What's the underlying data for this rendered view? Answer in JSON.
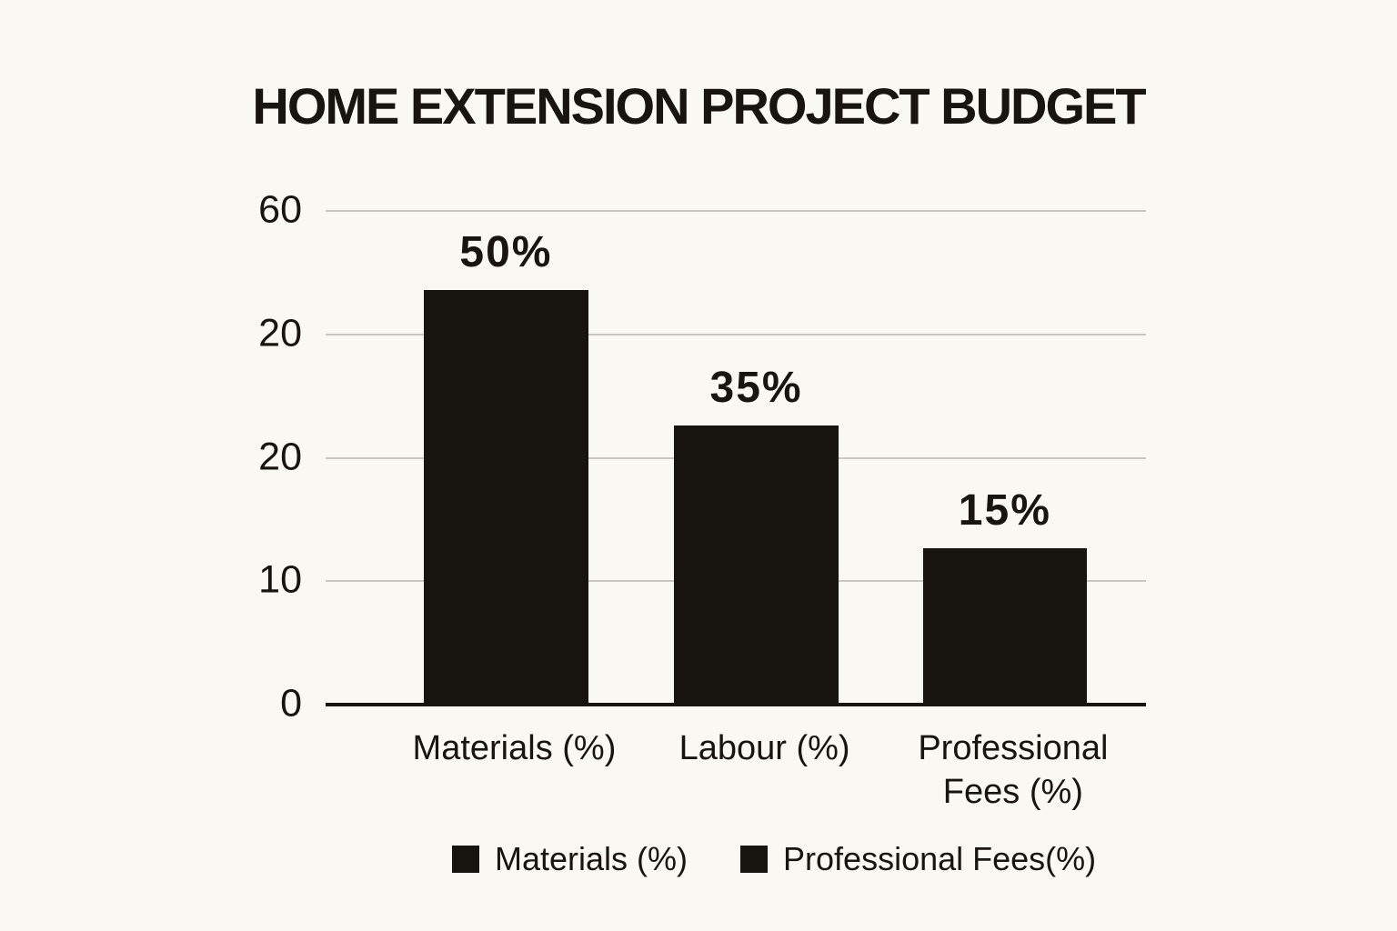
{
  "page": {
    "background_color": "#faf8f2",
    "ink_color": "#18140f",
    "gridline_color": "#cbc8c3"
  },
  "chart_data": {
    "type": "bar",
    "title": "HOME EXTENSION PROJECT BUDGET",
    "categories": [
      "Materials (%)",
      "Labour (%)",
      "Professional Fees (%)"
    ],
    "values": [
      50,
      35,
      15
    ],
    "value_labels": [
      "50%",
      "35%",
      "15%"
    ],
    "y_axis": {
      "tick_labels_top_to_bottom": [
        "60",
        "20",
        "20",
        "10",
        "0"
      ]
    },
    "grid": true,
    "bar_color": "#17130e",
    "legend": {
      "position": "bottom",
      "entries": [
        "Materials (%)",
        "Professional Fees(%)"
      ]
    },
    "drawn_bar_left_fractions": [
      0.12,
      0.425,
      0.728
    ],
    "drawn_bar_width_fraction": 0.2,
    "drawn_bar_height_fractions": [
      0.84,
      0.565,
      0.317
    ]
  }
}
